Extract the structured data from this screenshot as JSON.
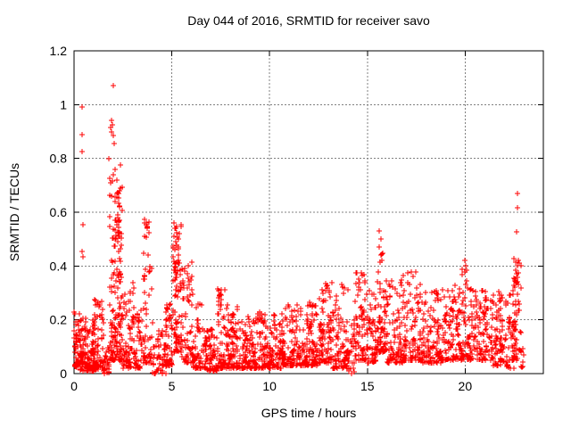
{
  "title": "Day 044 of 2016, SRMTID for receiver savo",
  "chart_data": {
    "type": "scatter",
    "title": "Day 044 of 2016, SRMTID for receiver savo",
    "xlabel": "GPS time / hours",
    "ylabel": "SRMTID / TECUs",
    "xlim": [
      0,
      24
    ],
    "ylim": [
      0,
      1.2
    ],
    "xticks": [
      0,
      5,
      10,
      15,
      20
    ],
    "xtick_labels": [
      "0",
      "5",
      "10",
      "15",
      "20"
    ],
    "yticks": [
      0,
      0.2,
      0.4,
      0.6,
      0.8,
      1,
      1.2
    ],
    "ytick_labels": [
      "0",
      "0.2",
      "0.4",
      "0.6",
      "0.8",
      "1",
      "1.2"
    ],
    "grid": true,
    "legend": "none",
    "marker": {
      "shape": "plus",
      "color": "#ff0000",
      "size": 7
    },
    "frame_color": "#000000",
    "grid_color": "#808080",
    "background": "#ffffff",
    "seed": 20160044,
    "notable_points": [
      [
        0.41,
        0.99
      ],
      [
        0.41,
        0.89
      ],
      [
        0.41,
        0.825
      ],
      [
        0.45,
        0.555
      ],
      [
        0.42,
        0.455
      ],
      [
        0.44,
        0.435
      ],
      [
        2.0,
        1.07
      ],
      [
        1.92,
        0.94
      ],
      [
        1.97,
        0.925
      ],
      [
        1.88,
        0.915
      ],
      [
        1.9,
        0.9
      ],
      [
        2.0,
        0.885
      ],
      [
        2.06,
        0.855
      ],
      [
        1.78,
        0.8
      ],
      [
        2.08,
        0.76
      ],
      [
        1.83,
        0.725
      ],
      [
        1.96,
        0.715
      ],
      [
        3.62,
        0.572
      ],
      [
        3.7,
        0.555
      ],
      [
        3.76,
        0.54
      ],
      [
        3.82,
        0.525
      ],
      [
        3.68,
        0.508
      ],
      [
        5.12,
        0.56
      ],
      [
        5.18,
        0.54
      ],
      [
        5.24,
        0.525
      ],
      [
        5.3,
        0.508
      ],
      [
        5.21,
        0.49
      ],
      [
        5.85,
        0.4
      ],
      [
        15.62,
        0.53
      ],
      [
        15.68,
        0.5
      ],
      [
        15.6,
        0.47
      ],
      [
        15.72,
        0.445
      ],
      [
        19.98,
        0.42
      ],
      [
        20.02,
        0.4
      ],
      [
        22.67,
        0.67
      ],
      [
        22.67,
        0.615
      ],
      [
        22.65,
        0.527
      ],
      [
        22.6,
        0.414
      ],
      [
        22.68,
        0.4
      ],
      [
        22.62,
        0.372
      ],
      [
        22.66,
        0.358
      ],
      [
        22.6,
        0.345
      ],
      [
        22.64,
        0.338
      ],
      [
        22.7,
        0.33
      ],
      [
        22.58,
        0.352
      ],
      [
        22.68,
        0.342
      ]
    ],
    "density_segments": [
      {
        "x0": 0.0,
        "x1": 0.35,
        "n": 50,
        "ymin": 0.02,
        "ymax": 0.24,
        "skew": 1.4
      },
      {
        "x0": 0.3,
        "x1": 1.1,
        "n": 130,
        "ymin": 0.01,
        "ymax": 0.22,
        "skew": 1.8
      },
      {
        "x0": 1.0,
        "x1": 1.55,
        "n": 60,
        "ymin": 0.01,
        "ymax": 0.28,
        "skew": 2.0
      },
      {
        "x0": 1.55,
        "x1": 1.8,
        "n": 25,
        "ymin": 0.0,
        "ymax": 0.12,
        "skew": 1.4
      },
      {
        "x0": 1.8,
        "x1": 2.45,
        "n": 150,
        "ymin": 0.05,
        "ymax": 0.78,
        "skew": 2.4
      },
      {
        "x0": 2.0,
        "x1": 2.35,
        "n": 22,
        "ymin": 0.5,
        "ymax": 0.68,
        "skew": 1.2
      },
      {
        "x0": 2.45,
        "x1": 3.1,
        "n": 70,
        "ymin": 0.02,
        "ymax": 0.36,
        "skew": 2.0
      },
      {
        "x0": 3.1,
        "x1": 3.55,
        "n": 45,
        "ymin": 0.02,
        "ymax": 0.25,
        "skew": 1.8
      },
      {
        "x0": 3.55,
        "x1": 4.0,
        "n": 50,
        "ymin": 0.04,
        "ymax": 0.45,
        "skew": 2.0
      },
      {
        "x0": 3.58,
        "x1": 3.85,
        "n": 6,
        "ymin": 0.5,
        "ymax": 0.575,
        "skew": 1.0
      },
      {
        "x0": 4.0,
        "x1": 4.7,
        "n": 55,
        "ymin": 0.0,
        "ymax": 0.16,
        "skew": 1.5
      },
      {
        "x0": 4.7,
        "x1": 5.05,
        "n": 45,
        "ymin": 0.03,
        "ymax": 0.26,
        "skew": 1.7
      },
      {
        "x0": 5.05,
        "x1": 5.5,
        "n": 90,
        "ymin": 0.08,
        "ymax": 0.56,
        "skew": 2.0
      },
      {
        "x0": 5.5,
        "x1": 6.1,
        "n": 70,
        "ymin": 0.04,
        "ymax": 0.42,
        "skew": 2.2
      },
      {
        "x0": 6.1,
        "x1": 6.7,
        "n": 60,
        "ymin": 0.02,
        "ymax": 0.26,
        "skew": 2.0
      },
      {
        "x0": 6.7,
        "x1": 7.3,
        "n": 70,
        "ymin": 0.01,
        "ymax": 0.17,
        "skew": 1.7
      },
      {
        "x0": 7.3,
        "x1": 7.8,
        "n": 65,
        "ymin": 0.02,
        "ymax": 0.33,
        "skew": 2.1
      },
      {
        "x0": 7.8,
        "x1": 8.6,
        "n": 95,
        "ymin": 0.02,
        "ymax": 0.26,
        "skew": 2.0
      },
      {
        "x0": 8.6,
        "x1": 9.6,
        "n": 115,
        "ymin": 0.02,
        "ymax": 0.23,
        "skew": 2.0
      },
      {
        "x0": 9.6,
        "x1": 10.6,
        "n": 115,
        "ymin": 0.02,
        "ymax": 0.22,
        "skew": 2.0
      },
      {
        "x0": 10.6,
        "x1": 11.6,
        "n": 115,
        "ymin": 0.03,
        "ymax": 0.26,
        "skew": 2.0
      },
      {
        "x0": 11.6,
        "x1": 12.5,
        "n": 105,
        "ymin": 0.03,
        "ymax": 0.28,
        "skew": 2.0
      },
      {
        "x0": 12.5,
        "x1": 13.2,
        "n": 85,
        "ymin": 0.04,
        "ymax": 0.34,
        "skew": 2.0
      },
      {
        "x0": 13.2,
        "x1": 14.0,
        "n": 85,
        "ymin": 0.02,
        "ymax": 0.34,
        "skew": 2.0
      },
      {
        "x0": 14.0,
        "x1": 14.35,
        "n": 30,
        "ymin": 0.0,
        "ymax": 0.2,
        "skew": 1.5
      },
      {
        "x0": 14.35,
        "x1": 14.9,
        "n": 65,
        "ymin": 0.05,
        "ymax": 0.39,
        "skew": 2.0
      },
      {
        "x0": 14.9,
        "x1": 15.45,
        "n": 60,
        "ymin": 0.04,
        "ymax": 0.31,
        "skew": 2.0
      },
      {
        "x0": 15.45,
        "x1": 15.9,
        "n": 60,
        "ymin": 0.08,
        "ymax": 0.45,
        "skew": 2.0
      },
      {
        "x0": 15.9,
        "x1": 16.8,
        "n": 95,
        "ymin": 0.04,
        "ymax": 0.36,
        "skew": 2.1
      },
      {
        "x0": 16.8,
        "x1": 17.8,
        "n": 105,
        "ymin": 0.05,
        "ymax": 0.38,
        "skew": 2.1
      },
      {
        "x0": 17.8,
        "x1": 18.8,
        "n": 105,
        "ymin": 0.04,
        "ymax": 0.31,
        "skew": 2.0
      },
      {
        "x0": 18.8,
        "x1": 19.7,
        "n": 95,
        "ymin": 0.05,
        "ymax": 0.33,
        "skew": 2.0
      },
      {
        "x0": 19.7,
        "x1": 20.15,
        "n": 50,
        "ymin": 0.05,
        "ymax": 0.43,
        "skew": 1.9
      },
      {
        "x0": 20.15,
        "x1": 21.2,
        "n": 115,
        "ymin": 0.05,
        "ymax": 0.32,
        "skew": 1.7
      },
      {
        "x0": 21.2,
        "x1": 22.1,
        "n": 95,
        "ymin": 0.03,
        "ymax": 0.31,
        "skew": 1.8
      },
      {
        "x0": 22.1,
        "x1": 22.55,
        "n": 45,
        "ymin": 0.02,
        "ymax": 0.31,
        "skew": 1.5
      },
      {
        "x0": 22.45,
        "x1": 22.85,
        "n": 48,
        "ymin": 0.05,
        "ymax": 0.43,
        "skew": 1.6
      },
      {
        "x0": 22.85,
        "x1": 23.0,
        "n": 8,
        "ymin": 0.02,
        "ymax": 0.12,
        "skew": 1.2
      }
    ]
  }
}
